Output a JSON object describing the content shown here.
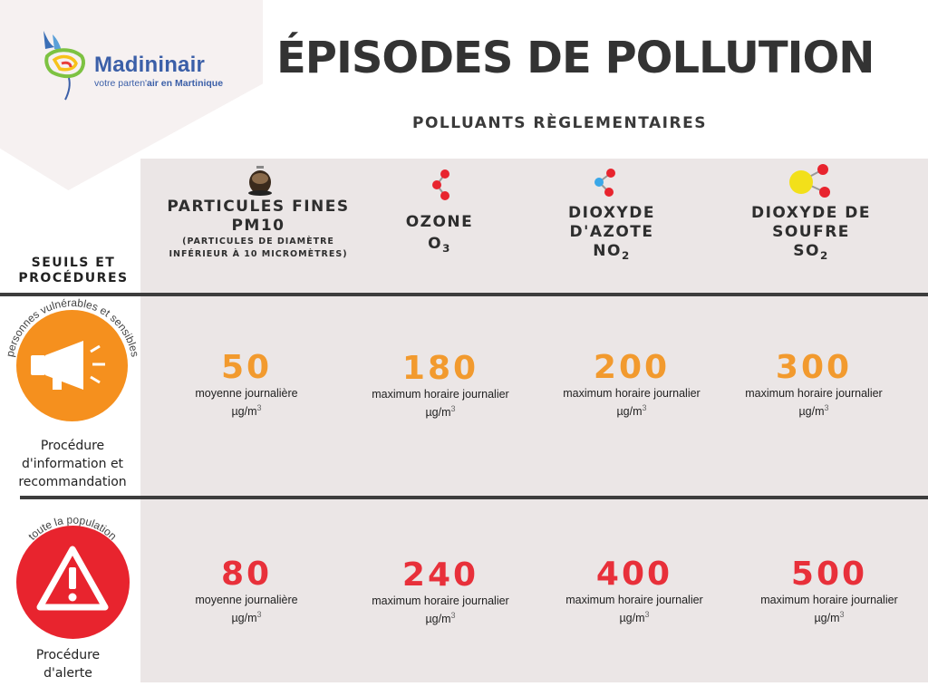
{
  "brand": {
    "name": "Madininair",
    "tagline_part1": "votre parten'",
    "tagline_part2": "air en Martinique"
  },
  "title": "ÉPISODES DE POLLUTION",
  "subtitle": "POLLUANTS RÈGLEMENTAIRES",
  "row_header": {
    "line1": "SEUILS ET",
    "line2": "PROCÉDURES"
  },
  "columns": [
    {
      "line1": "PARTICULES FINES",
      "line2": "PM10",
      "note1": "(PARTICULES DE DIAMÈTRE",
      "note2": "INFÉRIEUR À 10 MICROMÈTRES)",
      "icon": "particle-icon"
    },
    {
      "line1": "OZONE",
      "formula": "O",
      "formula_sub": "3",
      "icon": "ozone-molecule-icon"
    },
    {
      "line1": "DIOXYDE",
      "line2": "D'AZOTE",
      "formula": "NO",
      "formula_sub": "2",
      "icon": "no2-molecule-icon"
    },
    {
      "line1": "DIOXYDE DE",
      "line2": "SOUFRE",
      "formula": "SO",
      "formula_sub": "2",
      "icon": "so2-molecule-icon"
    }
  ],
  "rows": [
    {
      "arc_label": "personnes vulnérables et sensibles",
      "label1": "Procédure",
      "label2": "d'information et",
      "label3": "recommandation",
      "icon": "megaphone-icon",
      "color": "#f5901e",
      "cells": [
        {
          "value": "50",
          "desc": "moyenne journalière",
          "unit": "µg/m",
          "exp": "3"
        },
        {
          "value": "180",
          "desc": "maximum horaire journalier",
          "unit": "µg/m",
          "exp": "3"
        },
        {
          "value": "200",
          "desc": "maximum horaire journalier",
          "unit": "µg/m",
          "exp": "3"
        },
        {
          "value": "300",
          "desc": "maximum horaire journalier",
          "unit": "µg/m",
          "exp": "3"
        }
      ]
    },
    {
      "arc_label": "toute la population",
      "label1": "Procédure",
      "label2": "d'alerte",
      "icon": "warning-triangle-icon",
      "color": "#e8242e",
      "cells": [
        {
          "value": "80",
          "desc": "moyenne journalière",
          "unit": "µg/m",
          "exp": "3"
        },
        {
          "value": "240",
          "desc": "maximum horaire journalier",
          "unit": "µg/m",
          "exp": "3"
        },
        {
          "value": "400",
          "desc": "maximum horaire journalier",
          "unit": "µg/m",
          "exp": "3"
        },
        {
          "value": "500",
          "desc": "maximum horaire journalier",
          "unit": "µg/m",
          "exp": "3"
        }
      ]
    }
  ],
  "colors": {
    "orange": "#f29a2e",
    "red": "#e8303a",
    "panel": "#ebe6e6",
    "brand_blue": "#3b5fa8"
  }
}
